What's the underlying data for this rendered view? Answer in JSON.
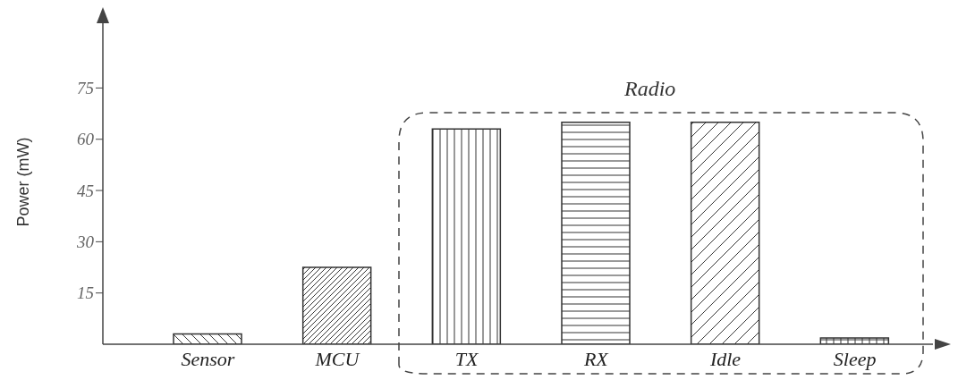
{
  "chart_data": {
    "type": "bar",
    "ylabel": "Power (mW)",
    "categories": [
      "Sensor",
      "MCU",
      "TX",
      "RX",
      "Idle",
      "Sleep"
    ],
    "values": [
      3,
      22.5,
      63,
      65,
      65,
      1.8
    ],
    "colors": [
      "#333333",
      "#333333",
      "#333333",
      "#333333",
      "#333333",
      "#333333"
    ],
    "ylim": [
      0,
      95
    ],
    "yticks": [
      15,
      30,
      45,
      60,
      75
    ],
    "grid": false,
    "legend": false,
    "annotations": [
      "Radio"
    ]
  }
}
